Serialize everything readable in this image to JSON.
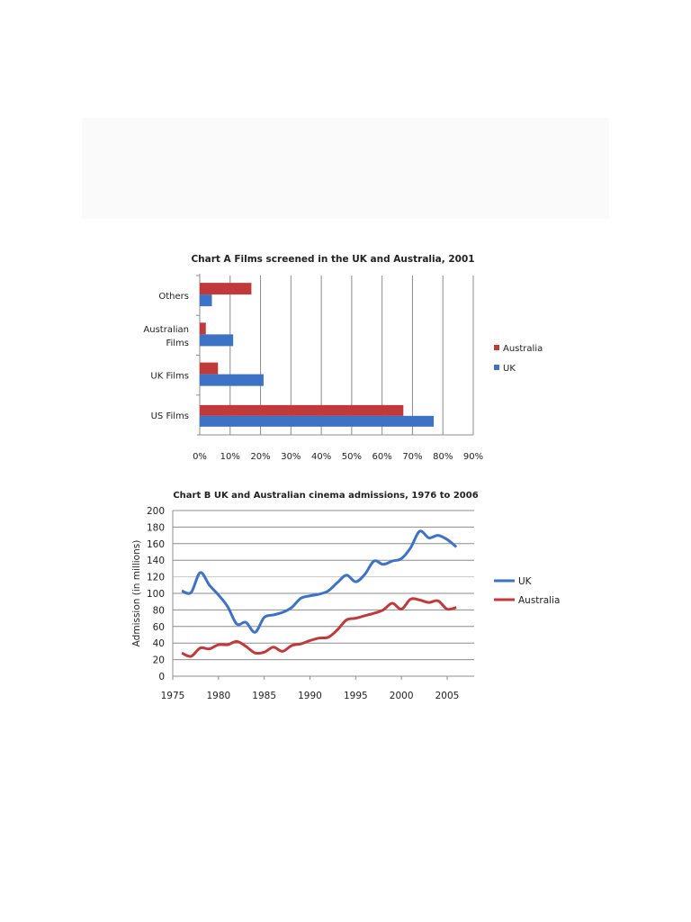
{
  "colors": {
    "australia": "#c0393b",
    "uk": "#3d72c4",
    "grid": "#8c8c8c"
  },
  "chart_data": [
    {
      "type": "bar",
      "orientation": "horizontal",
      "title": "Chart A   Films screened in the UK and Australia, 2001",
      "categories": [
        "Others",
        "Australian Films",
        "UK Films",
        "US Films"
      ],
      "category_labels": [
        [
          "Others"
        ],
        [
          "Australian",
          "Films"
        ],
        [
          "UK Films"
        ],
        [
          "US Films"
        ]
      ],
      "series": [
        {
          "name": "Australia",
          "values": [
            17,
            2,
            6,
            67
          ]
        },
        {
          "name": "UK",
          "values": [
            4,
            11,
            21,
            77
          ]
        }
      ],
      "xlim": [
        0,
        90
      ],
      "x_ticks": [
        "0%",
        "10%",
        "20%",
        "30%",
        "40%",
        "50%",
        "60%",
        "70%",
        "80%",
        "90%"
      ],
      "grid": "vertical",
      "legend": "right"
    },
    {
      "type": "line",
      "title": "Chart B   UK and Australian cinema admissions, 1976 to 2006",
      "ylabel": "Admission (in millions)",
      "x": [
        1976,
        1977,
        1978,
        1979,
        1980,
        1981,
        1982,
        1983,
        1984,
        1985,
        1986,
        1987,
        1988,
        1989,
        1990,
        1991,
        1992,
        1993,
        1994,
        1995,
        1996,
        1997,
        1998,
        1999,
        2000,
        2001,
        2002,
        2003,
        2004,
        2005,
        2006
      ],
      "series": [
        {
          "name": "UK",
          "values": [
            103,
            101,
            125,
            110,
            98,
            84,
            63,
            65,
            53,
            71,
            74,
            77,
            83,
            94,
            97,
            99,
            103,
            113,
            122,
            114,
            123,
            139,
            135,
            139,
            142,
            155,
            175,
            167,
            170,
            165,
            156
          ]
        },
        {
          "name": "Australia",
          "values": [
            28,
            24,
            34,
            33,
            38,
            38,
            42,
            36,
            28,
            29,
            35,
            30,
            37,
            39,
            43,
            46,
            47,
            56,
            68,
            70,
            73,
            76,
            80,
            88,
            81,
            93,
            92,
            89,
            91,
            81,
            83
          ]
        }
      ],
      "xlim": [
        1975,
        2008
      ],
      "ylim": [
        0,
        200
      ],
      "x_ticks": [
        "1975",
        "1980",
        "1985",
        "1990",
        "1995",
        "2000",
        "2005"
      ],
      "y_ticks": [
        "0",
        "20",
        "40",
        "60",
        "80",
        "100",
        "120",
        "140",
        "160",
        "180",
        "200"
      ],
      "grid": "horizontal",
      "legend": "right"
    }
  ]
}
